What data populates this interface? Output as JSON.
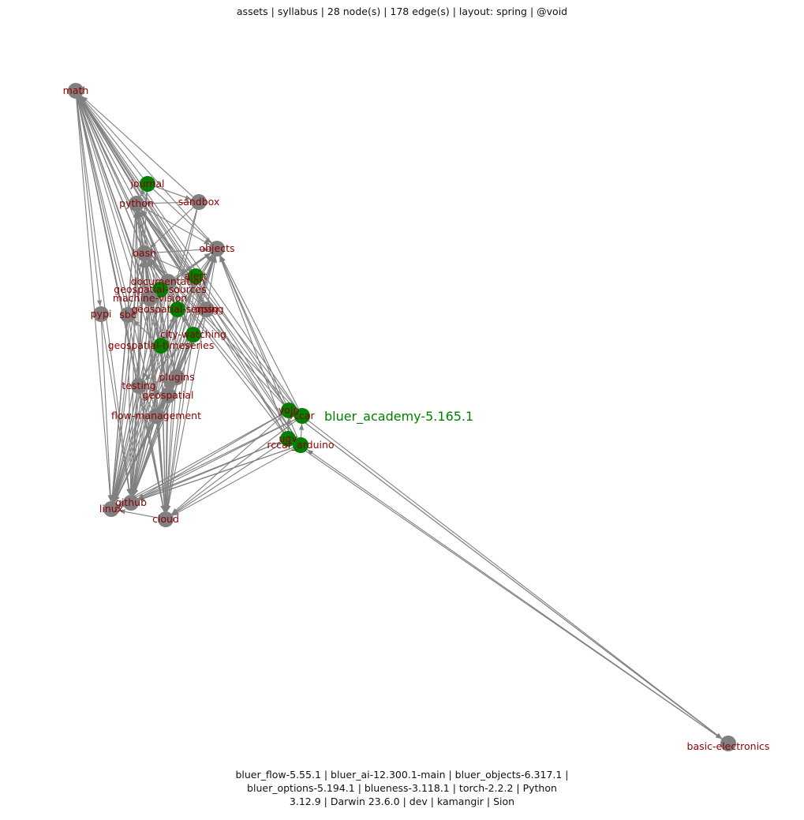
{
  "header": {
    "title": "assets | syllabus | 28 node(s) | 178 edge(s) | layout: spring | @void"
  },
  "footer": {
    "lines": [
      "bluer_flow-5.55.1 | bluer_ai-12.300.1-main | bluer_objects-6.317.1 |",
      "bluer_options-5.194.1 | blueness-3.118.1 | torch-2.2.2 | Python",
      "3.12.9 | Darwin 23.6.0 | dev | kamangir | Sion"
    ]
  },
  "colors": {
    "edge": "#808080",
    "node_default": "#808080",
    "node_highlight": "#008000",
    "label": "#8b0000",
    "hub_label": "#008000"
  },
  "graph": {
    "hub_label": "bluer_academy-5.165.1",
    "nodes": [
      {
        "id": "math",
        "label": "math",
        "color": "gray"
      },
      {
        "id": "journal",
        "label": "journal",
        "color": "green"
      },
      {
        "id": "sandbox",
        "label": "sandbox",
        "color": "gray"
      },
      {
        "id": "python",
        "label": "python",
        "color": "gray"
      },
      {
        "id": "objects",
        "label": "objects",
        "color": "gray"
      },
      {
        "id": "bash",
        "label": "bash",
        "color": "gray"
      },
      {
        "id": "alert",
        "label": "alert",
        "color": "green"
      },
      {
        "id": "documentation",
        "label": "documentation",
        "color": "gray"
      },
      {
        "id": "geospatial-sources",
        "label": "geospatial-sources",
        "color": "green"
      },
      {
        "id": "machine-vision",
        "label": "machine-vision",
        "color": "gray"
      },
      {
        "id": "geospatial-sensing",
        "label": "geospatial-sensing",
        "color": "green"
      },
      {
        "id": "gpsg",
        "label": "gpsg",
        "color": "gray"
      },
      {
        "id": "pypi",
        "label": "pypi",
        "color": "gray"
      },
      {
        "id": "sbc",
        "label": "sbc",
        "color": "gray"
      },
      {
        "id": "city-watching",
        "label": "city-watching",
        "color": "green"
      },
      {
        "id": "geospatial-timeseries",
        "label": "geospatial-timeseries",
        "color": "green"
      },
      {
        "id": "plugins",
        "label": "plugins",
        "color": "gray"
      },
      {
        "id": "testing",
        "label": "testing",
        "color": "gray"
      },
      {
        "id": "geospatial",
        "label": "geospatial",
        "color": "gray"
      },
      {
        "id": "flow-management",
        "label": "flow-management",
        "color": "gray"
      },
      {
        "id": "yolo",
        "label": "yolo",
        "color": "green"
      },
      {
        "id": "rccar",
        "label": "rccar",
        "color": "green"
      },
      {
        "id": "ugv",
        "label": "ugv",
        "color": "green"
      },
      {
        "id": "rccar-arduino",
        "label": "rccar_arduino",
        "color": "green"
      },
      {
        "id": "github",
        "label": "github",
        "color": "gray"
      },
      {
        "id": "linux",
        "label": "linux",
        "color": "gray"
      },
      {
        "id": "cloud",
        "label": "cloud",
        "color": "gray"
      },
      {
        "id": "basic-electronics",
        "label": "basic-electronics",
        "color": "gray"
      }
    ]
  }
}
